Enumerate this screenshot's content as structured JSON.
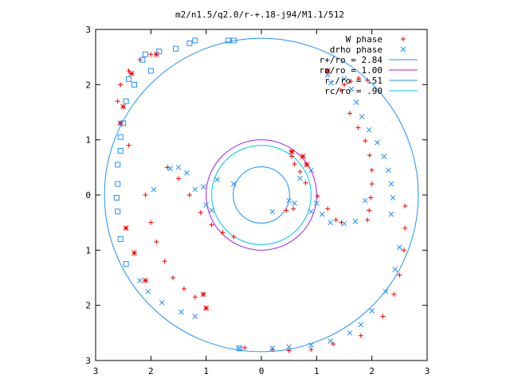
{
  "chart_data": {
    "type": "scatter",
    "title": "m2/n1.5/q2.0/r-+.18-j94/M1.1/512",
    "xlabel": "",
    "ylabel": "",
    "xlim": [
      -3,
      3
    ],
    "ylim": [
      -3,
      3
    ],
    "xticks": [
      -3,
      -2,
      -1,
      0,
      1,
      2,
      3
    ],
    "yticks": [
      -3,
      -2,
      -1,
      0,
      1,
      2,
      3
    ],
    "xtick_labels": [
      "3",
      "2",
      "1",
      "0",
      "1",
      "2",
      "3"
    ],
    "ytick_labels": [
      "3",
      "2",
      "1",
      "0",
      "1",
      "2",
      "3"
    ],
    "grid": false,
    "legend_position": "top-right",
    "series": [
      {
        "name": "W phase",
        "marker": "plus",
        "color": "#ff0000",
        "points": [
          [
            1.92,
            2.08
          ],
          [
            1.76,
            2.12
          ],
          [
            1.62,
            2.06
          ],
          [
            1.5,
            2.0
          ],
          [
            1.44,
            1.9
          ],
          [
            1.6,
            1.48
          ],
          [
            1.75,
            1.22
          ],
          [
            1.88,
            0.98
          ],
          [
            1.96,
            0.72
          ],
          [
            2.0,
            0.45
          ],
          [
            2.0,
            0.2
          ],
          [
            1.98,
            -0.05
          ],
          [
            1.95,
            -0.28
          ],
          [
            1.92,
            -0.45
          ],
          [
            2.6,
            -0.2
          ],
          [
            2.6,
            -0.6
          ],
          [
            2.58,
            -1.0
          ],
          [
            2.5,
            -1.45
          ],
          [
            2.4,
            -1.8
          ],
          [
            2.2,
            -2.2
          ],
          [
            1.8,
            -2.55
          ],
          [
            1.3,
            -2.7
          ],
          [
            0.9,
            -2.8
          ],
          [
            0.5,
            -2.82
          ],
          [
            0.2,
            -2.8
          ],
          [
            -0.3,
            -2.77
          ],
          [
            0.55,
            0.8
          ],
          [
            0.55,
            0.7
          ],
          [
            0.6,
            0.56
          ],
          [
            0.7,
            0.42
          ],
          [
            0.8,
            0.22
          ],
          [
            -0.5,
            -0.76
          ],
          [
            -0.7,
            -0.68
          ],
          [
            -0.9,
            -0.54
          ],
          [
            -1.1,
            -0.32
          ],
          [
            -1.3,
            0.0
          ],
          [
            -1.5,
            0.3
          ],
          [
            -1.7,
            0.5
          ],
          [
            -2.0,
            2.55
          ],
          [
            -2.2,
            2.45
          ],
          [
            -2.4,
            2.25
          ],
          [
            -2.55,
            2.0
          ],
          [
            -2.6,
            1.7
          ],
          [
            -2.55,
            1.3
          ],
          [
            -2.4,
            0.9
          ],
          [
            -2.1,
            0.0
          ],
          [
            -2.0,
            -0.5
          ],
          [
            -1.9,
            -0.85
          ],
          [
            -1.75,
            -1.2
          ],
          [
            -1.6,
            -1.5
          ],
          [
            -1.4,
            -1.7
          ],
          [
            -1.2,
            -1.85
          ],
          [
            1.02,
            -0.02
          ],
          [
            1.2,
            -0.25
          ],
          [
            1.35,
            -0.45
          ],
          [
            1.45,
            -0.5
          ],
          [
            0.58,
            -0.25
          ],
          [
            0.45,
            -0.28
          ]
        ]
      },
      {
        "name": "drho phase",
        "marker": "cross",
        "color": "#1e90ff",
        "points": [
          [
            1.2,
            2.18
          ],
          [
            1.26,
            2.03
          ],
          [
            1.5,
            2.1
          ],
          [
            1.63,
            1.92
          ],
          [
            1.72,
            1.68
          ],
          [
            1.82,
            1.42
          ],
          [
            1.95,
            1.18
          ],
          [
            2.1,
            0.95
          ],
          [
            2.22,
            0.7
          ],
          [
            2.3,
            0.45
          ],
          [
            2.35,
            0.2
          ],
          [
            2.38,
            -0.05
          ],
          [
            2.35,
            -0.35
          ],
          [
            2.5,
            -0.95
          ],
          [
            2.42,
            -1.35
          ],
          [
            2.25,
            -1.75
          ],
          [
            2.0,
            -2.1
          ],
          [
            1.8,
            -2.35
          ],
          [
            1.6,
            -2.5
          ],
          [
            1.25,
            -2.65
          ],
          [
            0.9,
            -2.72
          ],
          [
            0.5,
            -2.75
          ],
          [
            0.2,
            -2.78
          ],
          [
            -0.4,
            -2.78
          ],
          [
            0.6,
            -0.15
          ],
          [
            0.9,
            -0.3
          ],
          [
            1.0,
            -0.15
          ],
          [
            1.1,
            -0.35
          ],
          [
            1.25,
            -0.5
          ],
          [
            1.5,
            -0.52
          ],
          [
            1.7,
            -0.48
          ],
          [
            1.88,
            -0.1
          ],
          [
            -0.9,
            -0.28
          ],
          [
            -1.0,
            -0.18
          ],
          [
            -1.2,
            0.1
          ],
          [
            -1.35,
            0.4
          ],
          [
            -1.5,
            0.5
          ],
          [
            -1.65,
            0.48
          ],
          [
            -1.95,
            0.1
          ],
          [
            -2.2,
            -1.55
          ],
          [
            -2.05,
            -1.75
          ],
          [
            -1.8,
            -1.95
          ],
          [
            -1.45,
            -2.12
          ],
          [
            -1.2,
            -2.2
          ],
          [
            -1.05,
            0.15
          ],
          [
            -0.8,
            0.28
          ],
          [
            -0.5,
            0.2
          ],
          [
            0.2,
            -0.3
          ],
          [
            0.5,
            -0.1
          ],
          [
            0.7,
            0.3
          ],
          [
            0.9,
            0.45
          ]
        ]
      },
      {
        "name": "",
        "marker": "star",
        "color": "#ff0000",
        "points": [
          [
            -1.9,
            2.55
          ],
          [
            -2.35,
            2.2
          ],
          [
            -2.5,
            1.6
          ],
          [
            -2.55,
            1.3
          ],
          [
            -2.45,
            -0.6
          ],
          [
            -2.3,
            -1.05
          ],
          [
            -2.1,
            -1.55
          ],
          [
            -1.05,
            -1.8
          ],
          [
            -1.0,
            -2.05
          ],
          [
            0.55,
            0.78
          ],
          [
            0.75,
            0.7
          ],
          [
            0.82,
            0.55
          ],
          [
            1.2,
            2.25
          ]
        ]
      },
      {
        "name": "",
        "marker": "square",
        "color": "#1e90ff",
        "points": [
          [
            -1.2,
            2.8
          ],
          [
            -0.6,
            2.8
          ],
          [
            -2.15,
            2.45
          ],
          [
            -2.3,
            2.0
          ],
          [
            -2.5,
            1.3
          ],
          [
            -2.55,
            0.8
          ],
          [
            -2.6,
            0.2
          ],
          [
            -2.6,
            -0.3
          ],
          [
            -2.55,
            -0.8
          ],
          [
            -2.45,
            -1.25
          ],
          [
            -1.3,
            2.75
          ],
          [
            -0.5,
            2.8
          ],
          [
            -2.1,
            2.55
          ],
          [
            -0.4,
            -2.78
          ],
          [
            -1.55,
            2.65
          ],
          [
            -1.85,
            2.6
          ],
          [
            -2.0,
            2.25
          ],
          [
            -2.4,
            2.1
          ],
          [
            -2.45,
            1.7
          ],
          [
            -2.55,
            1.05
          ],
          [
            -2.6,
            0.55
          ],
          [
            -2.62,
            -0.05
          ]
        ]
      }
    ],
    "circles": [
      {
        "label": "r+/ro = 2.84",
        "radius": 2.84,
        "color": "#1e90ff"
      },
      {
        "label": "ro/ro = 1.00",
        "radius": 1.0,
        "color": "#a020f0"
      },
      {
        "label": "r-/ro = .51",
        "radius": 0.51,
        "color": "#1e90ff"
      },
      {
        "label": "rc/ro = .90",
        "radius": 0.9,
        "color": "#00c8e0"
      }
    ]
  }
}
